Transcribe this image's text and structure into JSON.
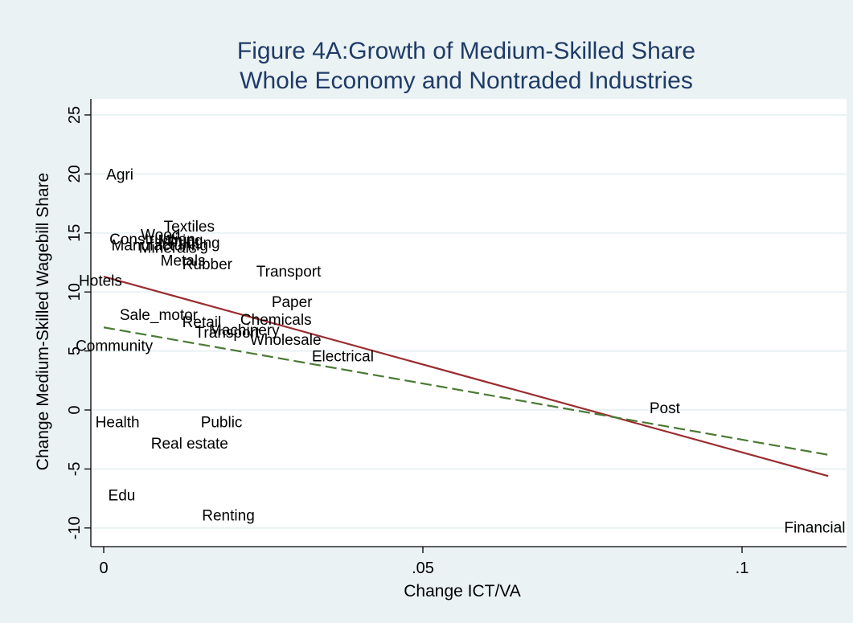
{
  "chart_data": {
    "type": "scatter",
    "title_line1": "Figure 4A:Growth of Medium-Skilled Share",
    "title_line2": "Whole Economy and Nontraded Industries",
    "xlabel": "Change ICT/VA",
    "ylabel": "Change Medium-Skilled Wagebill Share",
    "xlim": [
      0,
      0.115
    ],
    "ylim": [
      -11.5,
      27
    ],
    "x_ticks": [
      {
        "value": 0,
        "label": "0"
      },
      {
        "value": 0.05,
        "label": ".05"
      },
      {
        "value": 0.1,
        "label": ".1"
      }
    ],
    "y_ticks": [
      {
        "value": -10,
        "label": "-10"
      },
      {
        "value": -5,
        "label": "-5"
      },
      {
        "value": 0,
        "label": "0"
      },
      {
        "value": 5,
        "label": "5"
      },
      {
        "value": 10,
        "label": "10"
      },
      {
        "value": 15,
        "label": "15"
      },
      {
        "value": 20,
        "label": "20"
      },
      {
        "value": 25,
        "label": "25"
      }
    ],
    "grid": "horizontal",
    "points": [
      {
        "label": "Agri",
        "x": 0.0004,
        "y": 20.0
      },
      {
        "label": "Textiles",
        "x": 0.0094,
        "y": 15.6
      },
      {
        "label": "Wood",
        "x": 0.0058,
        "y": 14.9
      },
      {
        "label": "Construction",
        "x": 0.0009,
        "y": 14.5
      },
      {
        "label": "Manufacturing",
        "x": 0.0012,
        "y": 14.0
      },
      {
        "label": "Mining",
        "x": 0.0085,
        "y": 14.4
      },
      {
        "label": "Printing",
        "x": 0.0101,
        "y": 14.2
      },
      {
        "label": "Minerals",
        "x": 0.0055,
        "y": 13.8
      },
      {
        "label": "Metals",
        "x": 0.0089,
        "y": 12.7
      },
      {
        "label": "Rubber",
        "x": 0.0123,
        "y": 12.4
      },
      {
        "label": "Transport",
        "x": 0.0239,
        "y": 11.8
      },
      {
        "label": "Hotels",
        "x": -0.0039,
        "y": 11.0
      },
      {
        "label": "Paper",
        "x": 0.0263,
        "y": 9.2
      },
      {
        "label": "Sale_motor",
        "x": 0.0025,
        "y": 8.1
      },
      {
        "label": "Chemicals",
        "x": 0.0214,
        "y": 7.7
      },
      {
        "label": "Retail",
        "x": 0.0123,
        "y": 7.5
      },
      {
        "label": "Machinery",
        "x": 0.0165,
        "y": 6.8
      },
      {
        "label": "Transport",
        "x": 0.0143,
        "y": 6.6
      },
      {
        "label": "Wholesale",
        "x": 0.0229,
        "y": 6.0
      },
      {
        "label": "Community",
        "x": -0.0044,
        "y": 5.5
      },
      {
        "label": "Electrical",
        "x": 0.0326,
        "y": 4.6
      },
      {
        "label": "Post",
        "x": 0.0855,
        "y": 0.2
      },
      {
        "label": "Health",
        "x": -0.0013,
        "y": -1.0
      },
      {
        "label": "Public",
        "x": 0.0152,
        "y": -1.0
      },
      {
        "label": "Real estate",
        "x": 0.0074,
        "y": -2.8
      },
      {
        "label": "Edu",
        "x": 0.0007,
        "y": -7.2
      },
      {
        "label": "Renting",
        "x": 0.0154,
        "y": -8.9
      },
      {
        "label": "Financial",
        "x": 0.1066,
        "y": -9.9
      }
    ],
    "fit_lines": [
      {
        "style": "solid",
        "color": "#9b2d30",
        "x": [
          0,
          0.1135
        ],
        "y": [
          11.3,
          -5.6
        ]
      },
      {
        "style": "dashed",
        "color": "#4a7a34",
        "x": [
          0,
          0.1135
        ],
        "y": [
          7.0,
          -3.8
        ]
      }
    ],
    "colors": {
      "background": "#eaf2f3",
      "plot_background": "#ffffff",
      "title": "#1f3b68",
      "grid": "#eaf2f3",
      "text": "#000000"
    }
  }
}
